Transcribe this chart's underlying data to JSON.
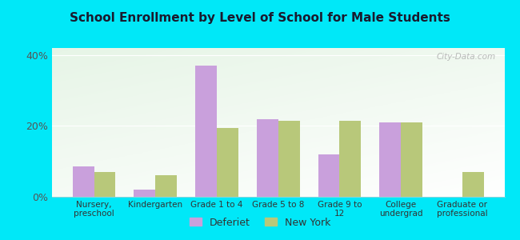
{
  "title": "School Enrollment by Level of School for Male Students",
  "categories": [
    "Nursery,\npreschool",
    "Kindergarten",
    "Grade 1 to 4",
    "Grade 5 to 8",
    "Grade 9 to\n12",
    "College\nundergrad",
    "Graduate or\nprofessional"
  ],
  "deferiet": [
    8.5,
    2.0,
    37.0,
    22.0,
    12.0,
    21.0,
    0.0
  ],
  "new_york": [
    7.0,
    6.0,
    19.5,
    21.5,
    21.5,
    21.0,
    7.0
  ],
  "deferiet_color": "#c9a0dc",
  "new_york_color": "#b8c87a",
  "background_outer": "#00e8f8",
  "ylim": [
    0,
    42
  ],
  "yticks": [
    0,
    20,
    40
  ],
  "ytick_labels": [
    "0%",
    "20%",
    "40%"
  ],
  "bar_width": 0.35,
  "legend_labels": [
    "Deferiet",
    "New York"
  ],
  "watermark": "City-Data.com",
  "title_color": "#1a1a2e"
}
